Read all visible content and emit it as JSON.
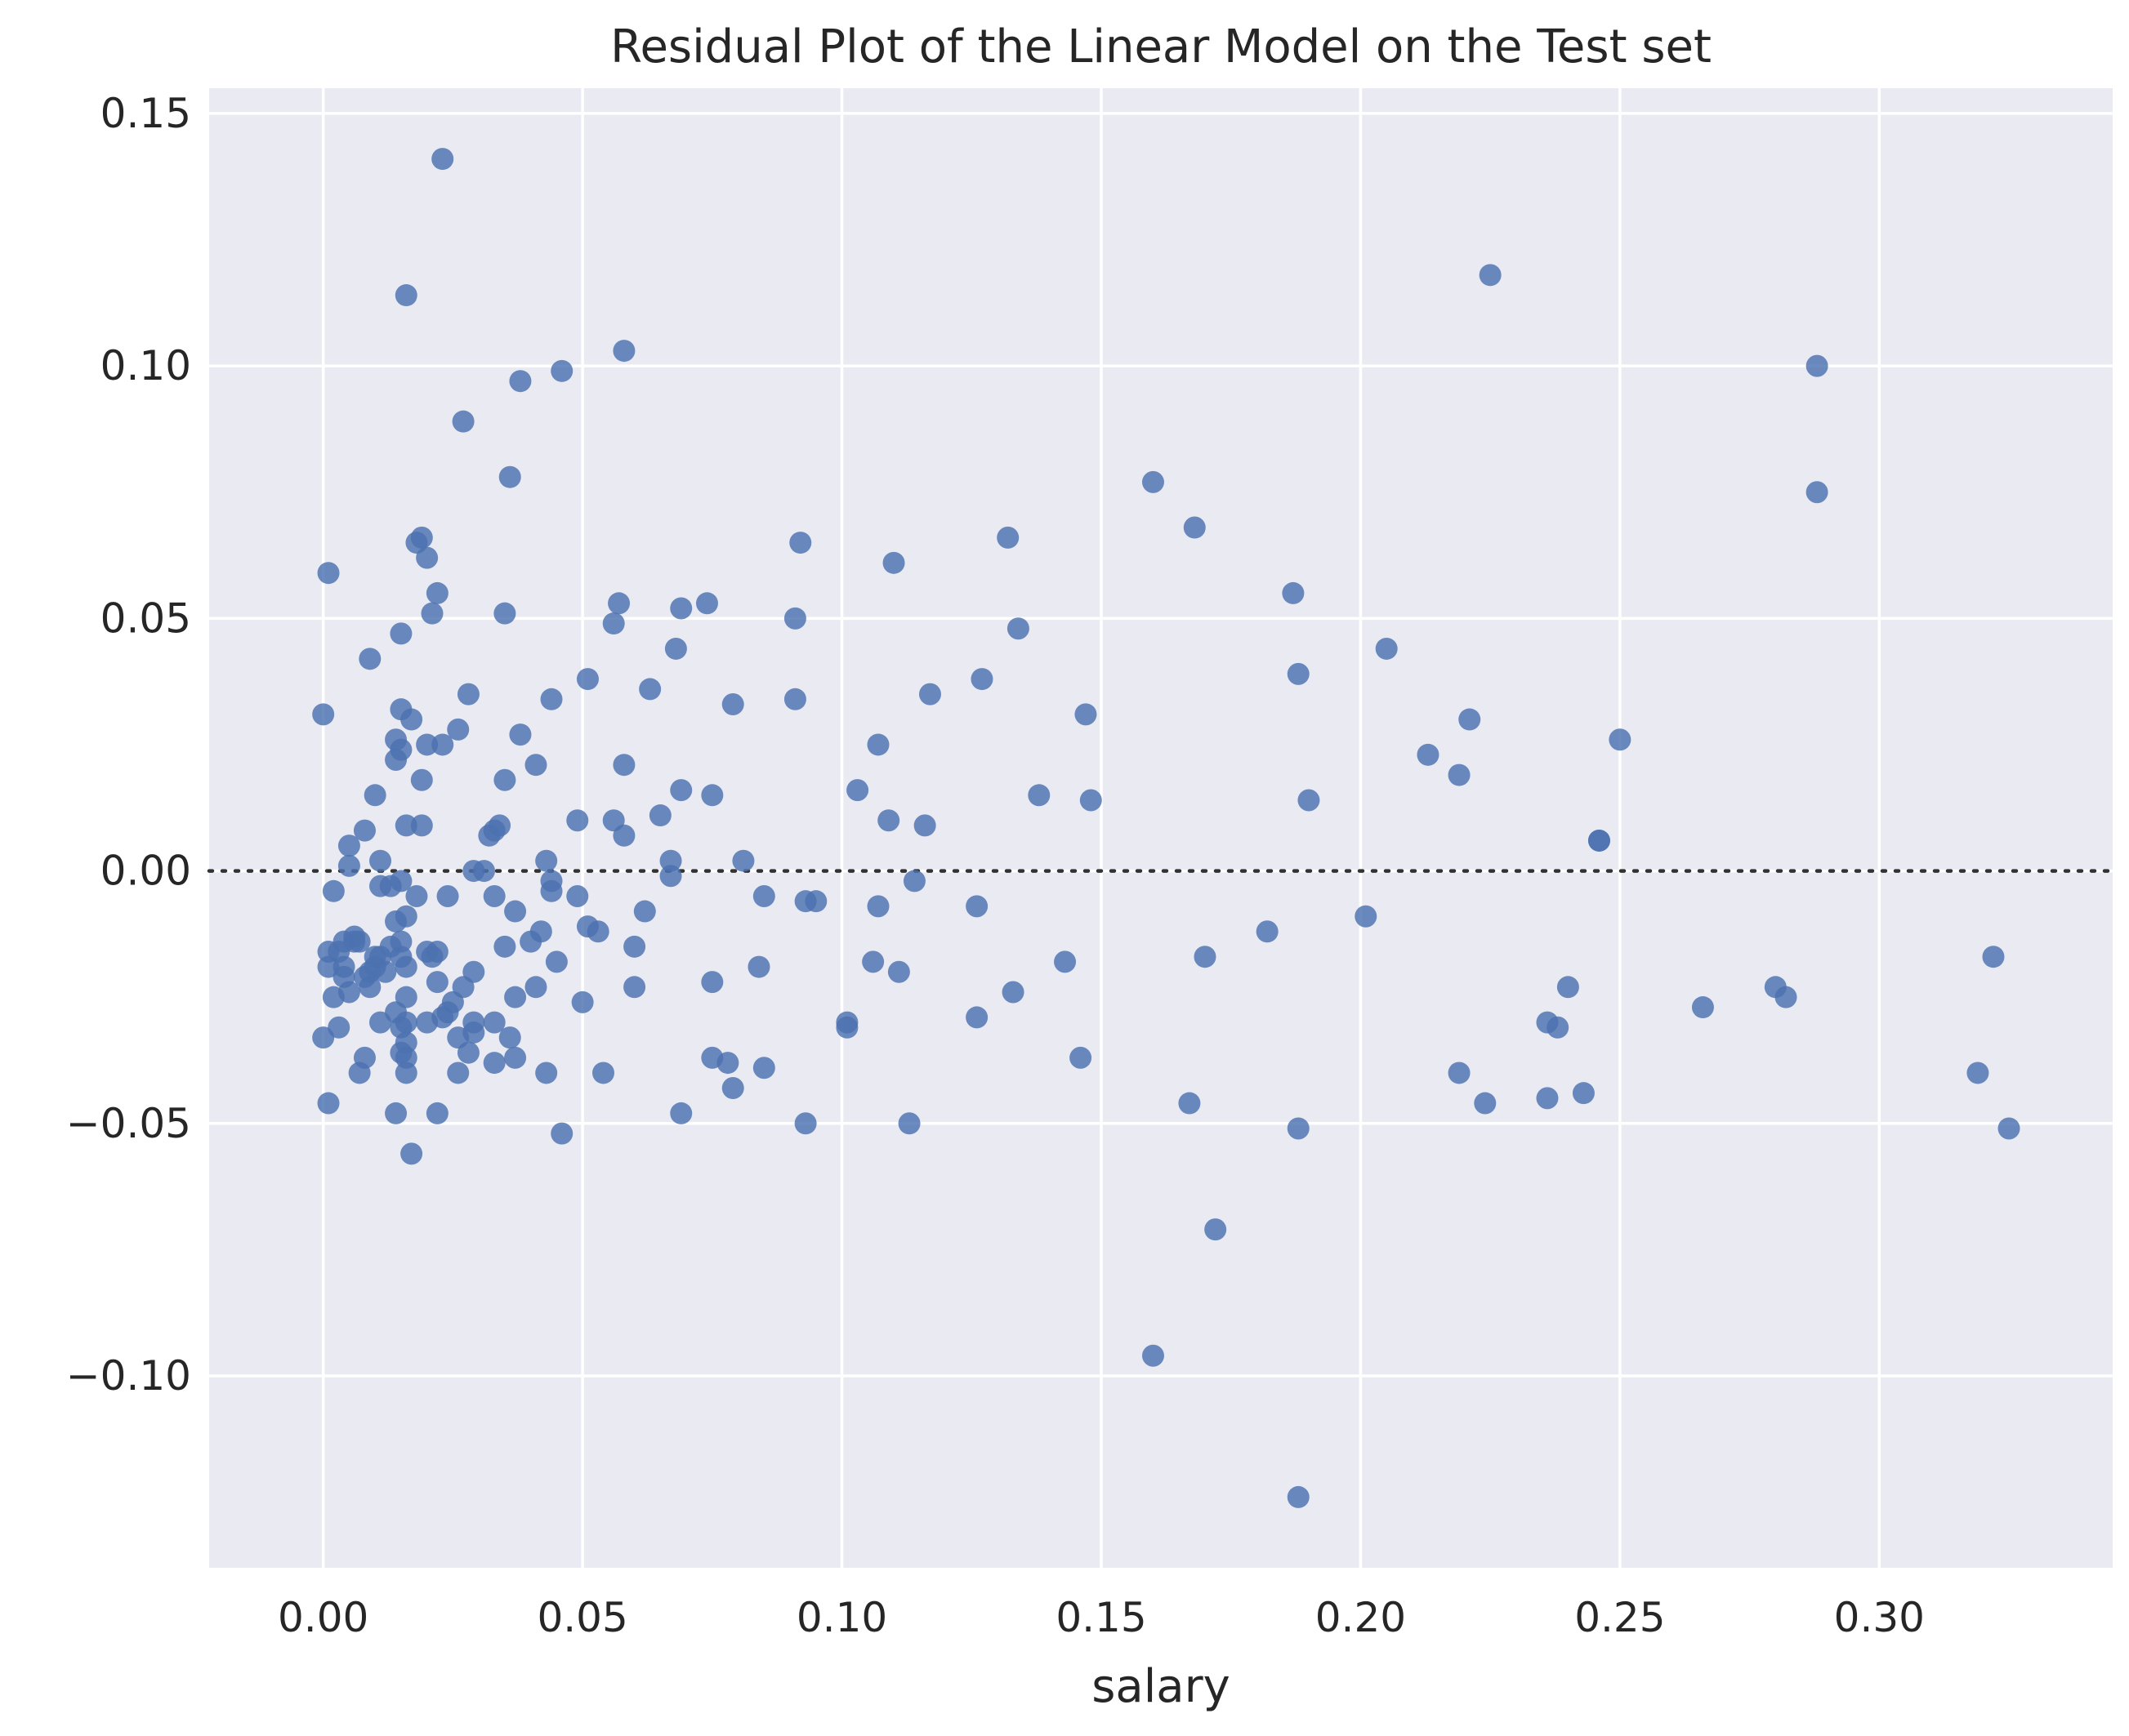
{
  "chart_data": {
    "type": "scatter",
    "title": "Residual Plot of the Linear Model on the Test set",
    "xlabel": "salary",
    "ylabel": "",
    "xlim": [
      -0.022,
      0.345
    ],
    "ylim": [
      -0.138,
      0.155
    ],
    "x_ticks": [
      0.0,
      0.05,
      0.1,
      0.15,
      0.2,
      0.25,
      0.3
    ],
    "x_tick_labels": [
      "0.00",
      "0.05",
      "0.10",
      "0.15",
      "0.20",
      "0.25",
      "0.30"
    ],
    "y_ticks": [
      -0.1,
      -0.05,
      0.0,
      0.05,
      0.1,
      0.15
    ],
    "y_tick_labels": [
      "−0.10",
      "−0.05",
      "0.00",
      "0.05",
      "0.10",
      "0.15"
    ],
    "grid": true,
    "reference_line_y": 0.0,
    "colors": {
      "background": "#eaeaf2",
      "points": "#4c72b0",
      "grid": "#ffffff",
      "reference_line": "#333333"
    },
    "points": [
      [
        0.0,
        0.031
      ],
      [
        0.0,
        -0.033
      ],
      [
        0.001,
        0.059
      ],
      [
        0.001,
        -0.016
      ],
      [
        0.001,
        -0.046
      ],
      [
        0.001,
        -0.019
      ],
      [
        0.002,
        -0.025
      ],
      [
        0.002,
        -0.004
      ],
      [
        0.003,
        -0.016
      ],
      [
        0.003,
        -0.031
      ],
      [
        0.004,
        -0.019
      ],
      [
        0.004,
        -0.021
      ],
      [
        0.004,
        -0.014
      ],
      [
        0.005,
        0.005
      ],
      [
        0.005,
        0.001
      ],
      [
        0.005,
        -0.024
      ],
      [
        0.006,
        -0.014
      ],
      [
        0.006,
        -0.013
      ],
      [
        0.007,
        -0.014
      ],
      [
        0.007,
        -0.04
      ],
      [
        0.008,
        -0.037
      ],
      [
        0.008,
        -0.021
      ],
      [
        0.008,
        0.008
      ],
      [
        0.009,
        -0.023
      ],
      [
        0.009,
        0.042
      ],
      [
        0.009,
        -0.02
      ],
      [
        0.01,
        0.015
      ],
      [
        0.01,
        -0.019
      ],
      [
        0.01,
        -0.017
      ],
      [
        0.011,
        0.002
      ],
      [
        0.011,
        -0.003
      ],
      [
        0.011,
        -0.03
      ],
      [
        0.011,
        -0.017
      ],
      [
        0.012,
        -0.02
      ],
      [
        0.013,
        -0.003
      ],
      [
        0.013,
        -0.015
      ],
      [
        0.014,
        0.026
      ],
      [
        0.014,
        -0.01
      ],
      [
        0.014,
        -0.048
      ],
      [
        0.014,
        0.022
      ],
      [
        0.014,
        -0.028
      ],
      [
        0.015,
        -0.031
      ],
      [
        0.015,
        -0.036
      ],
      [
        0.015,
        -0.017
      ],
      [
        0.015,
        -0.002
      ],
      [
        0.015,
        0.032
      ],
      [
        0.015,
        0.024
      ],
      [
        0.015,
        0.047
      ],
      [
        0.015,
        -0.014
      ],
      [
        0.016,
        -0.009
      ],
      [
        0.016,
        -0.04
      ],
      [
        0.016,
        -0.037
      ],
      [
        0.016,
        -0.034
      ],
      [
        0.016,
        0.009
      ],
      [
        0.016,
        -0.025
      ],
      [
        0.016,
        -0.019
      ],
      [
        0.016,
        -0.03
      ],
      [
        0.016,
        0.114
      ],
      [
        0.017,
        0.03
      ],
      [
        0.017,
        -0.056
      ],
      [
        0.018,
        -0.005
      ],
      [
        0.018,
        0.065
      ],
      [
        0.019,
        0.009
      ],
      [
        0.019,
        0.066
      ],
      [
        0.019,
        0.018
      ],
      [
        0.02,
        0.062
      ],
      [
        0.02,
        0.025
      ],
      [
        0.02,
        -0.016
      ],
      [
        0.02,
        -0.03
      ],
      [
        0.021,
        -0.017
      ],
      [
        0.021,
        0.051
      ],
      [
        0.022,
        -0.016
      ],
      [
        0.022,
        0.055
      ],
      [
        0.022,
        -0.022
      ],
      [
        0.022,
        -0.048
      ],
      [
        0.023,
        0.025
      ],
      [
        0.023,
        0.141
      ],
      [
        0.023,
        -0.029
      ],
      [
        0.024,
        -0.005
      ],
      [
        0.024,
        -0.028
      ],
      [
        0.025,
        -0.026
      ],
      [
        0.026,
        0.028
      ],
      [
        0.026,
        -0.04
      ],
      [
        0.026,
        -0.033
      ],
      [
        0.027,
        0.089
      ],
      [
        0.027,
        -0.023
      ],
      [
        0.028,
        -0.036
      ],
      [
        0.028,
        0.035
      ],
      [
        0.029,
        0.0
      ],
      [
        0.029,
        -0.032
      ],
      [
        0.029,
        -0.03
      ],
      [
        0.029,
        -0.02
      ],
      [
        0.031,
        0.0
      ],
      [
        0.032,
        0.007
      ],
      [
        0.033,
        0.008
      ],
      [
        0.033,
        -0.03
      ],
      [
        0.033,
        -0.005
      ],
      [
        0.033,
        -0.038
      ],
      [
        0.034,
        0.009
      ],
      [
        0.035,
        0.051
      ],
      [
        0.035,
        0.018
      ],
      [
        0.035,
        -0.015
      ],
      [
        0.036,
        0.078
      ],
      [
        0.036,
        -0.033
      ],
      [
        0.037,
        -0.025
      ],
      [
        0.037,
        -0.008
      ],
      [
        0.037,
        -0.037
      ],
      [
        0.038,
        0.097
      ],
      [
        0.038,
        0.027
      ],
      [
        0.04,
        -0.014
      ],
      [
        0.041,
        0.021
      ],
      [
        0.041,
        -0.023
      ],
      [
        0.042,
        -0.012
      ],
      [
        0.043,
        -0.04
      ],
      [
        0.043,
        0.002
      ],
      [
        0.044,
        -0.004
      ],
      [
        0.044,
        -0.002
      ],
      [
        0.044,
        0.034
      ],
      [
        0.045,
        -0.018
      ],
      [
        0.046,
        0.099
      ],
      [
        0.046,
        -0.052
      ],
      [
        0.049,
        0.01
      ],
      [
        0.049,
        -0.005
      ],
      [
        0.05,
        -0.026
      ],
      [
        0.051,
        -0.011
      ],
      [
        0.051,
        0.038
      ],
      [
        0.053,
        -0.012
      ],
      [
        0.054,
        -0.04
      ],
      [
        0.056,
        0.049
      ],
      [
        0.056,
        0.01
      ],
      [
        0.057,
        0.053
      ],
      [
        0.058,
        0.007
      ],
      [
        0.058,
        0.021
      ],
      [
        0.058,
        0.103
      ],
      [
        0.06,
        -0.015
      ],
      [
        0.06,
        -0.023
      ],
      [
        0.062,
        -0.008
      ],
      [
        0.063,
        0.036
      ],
      [
        0.065,
        0.011
      ],
      [
        0.067,
        0.002
      ],
      [
        0.067,
        -0.001
      ],
      [
        0.068,
        0.044
      ],
      [
        0.069,
        0.016
      ],
      [
        0.069,
        -0.048
      ],
      [
        0.069,
        0.052
      ],
      [
        0.074,
        0.053
      ],
      [
        0.075,
        -0.022
      ],
      [
        0.075,
        -0.037
      ],
      [
        0.075,
        0.015
      ],
      [
        0.078,
        -0.038
      ],
      [
        0.079,
        0.033
      ],
      [
        0.079,
        -0.043
      ],
      [
        0.081,
        0.002
      ],
      [
        0.084,
        -0.019
      ],
      [
        0.085,
        -0.005
      ],
      [
        0.085,
        -0.039
      ],
      [
        0.091,
        0.05
      ],
      [
        0.091,
        0.034
      ],
      [
        0.092,
        0.065
      ],
      [
        0.093,
        -0.006
      ],
      [
        0.093,
        -0.05
      ],
      [
        0.095,
        -0.006
      ],
      [
        0.101,
        -0.03
      ],
      [
        0.101,
        -0.031
      ],
      [
        0.103,
        0.016
      ],
      [
        0.106,
        -0.018
      ],
      [
        0.107,
        0.025
      ],
      [
        0.107,
        -0.007
      ],
      [
        0.109,
        0.01
      ],
      [
        0.11,
        0.061
      ],
      [
        0.111,
        -0.02
      ],
      [
        0.113,
        -0.05
      ],
      [
        0.114,
        -0.002
      ],
      [
        0.116,
        0.009
      ],
      [
        0.117,
        0.035
      ],
      [
        0.126,
        -0.007
      ],
      [
        0.126,
        -0.029
      ],
      [
        0.127,
        0.038
      ],
      [
        0.132,
        0.066
      ],
      [
        0.133,
        -0.024
      ],
      [
        0.134,
        0.048
      ],
      [
        0.138,
        0.015
      ],
      [
        0.143,
        -0.018
      ],
      [
        0.146,
        -0.037
      ],
      [
        0.147,
        0.031
      ],
      [
        0.148,
        0.014
      ],
      [
        0.16,
        0.077
      ],
      [
        0.16,
        -0.096
      ],
      [
        0.167,
        -0.046
      ],
      [
        0.168,
        0.068
      ],
      [
        0.17,
        -0.017
      ],
      [
        0.172,
        -0.071
      ],
      [
        0.182,
        -0.012
      ],
      [
        0.187,
        0.055
      ],
      [
        0.188,
        0.039
      ],
      [
        0.188,
        -0.051
      ],
      [
        0.188,
        -0.124
      ],
      [
        0.19,
        0.014
      ],
      [
        0.201,
        -0.009
      ],
      [
        0.205,
        0.044
      ],
      [
        0.213,
        0.023
      ],
      [
        0.219,
        0.019
      ],
      [
        0.219,
        -0.04
      ],
      [
        0.221,
        0.03
      ],
      [
        0.224,
        -0.046
      ],
      [
        0.225,
        0.118
      ],
      [
        0.236,
        -0.045
      ],
      [
        0.236,
        -0.03
      ],
      [
        0.238,
        -0.031
      ],
      [
        0.24,
        -0.023
      ],
      [
        0.243,
        -0.044
      ],
      [
        0.246,
        0.006
      ],
      [
        0.246,
        0.006
      ],
      [
        0.25,
        0.026
      ],
      [
        0.266,
        -0.027
      ],
      [
        0.28,
        -0.023
      ],
      [
        0.282,
        -0.025
      ],
      [
        0.288,
        0.1
      ],
      [
        0.288,
        0.075
      ],
      [
        0.319,
        -0.04
      ],
      [
        0.322,
        -0.017
      ],
      [
        0.325,
        -0.051
      ]
    ]
  }
}
